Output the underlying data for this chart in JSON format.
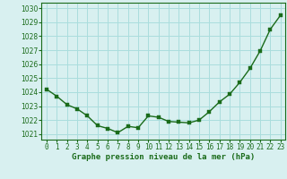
{
  "x": [
    0,
    1,
    2,
    3,
    4,
    5,
    6,
    7,
    8,
    9,
    10,
    11,
    12,
    13,
    14,
    15,
    16,
    17,
    18,
    19,
    20,
    21,
    22,
    23
  ],
  "y": [
    1024.2,
    1023.7,
    1023.1,
    1022.8,
    1022.3,
    1021.6,
    1021.4,
    1021.1,
    1021.55,
    1021.45,
    1022.3,
    1022.2,
    1021.9,
    1021.85,
    1021.8,
    1022.0,
    1022.6,
    1023.3,
    1023.85,
    1024.7,
    1025.7,
    1026.95,
    1028.5,
    1029.5
  ],
  "line_color": "#1a6b1a",
  "marker_color": "#1a6b1a",
  "bg_color": "#d8f0f0",
  "grid_color": "#aadddd",
  "ylabel_ticks": [
    1021,
    1022,
    1023,
    1024,
    1025,
    1026,
    1027,
    1028,
    1029,
    1030
  ],
  "xlabel": "Graphe pression niveau de la mer (hPa)",
  "ylim": [
    1020.6,
    1030.4
  ],
  "xlim": [
    -0.5,
    23.5
  ],
  "xlabel_color": "#1a6b1a",
  "tick_color": "#1a6b1a",
  "marker_size": 2.5,
  "line_width": 1.0,
  "tick_fontsize": 5.5,
  "xlabel_fontsize": 6.5
}
